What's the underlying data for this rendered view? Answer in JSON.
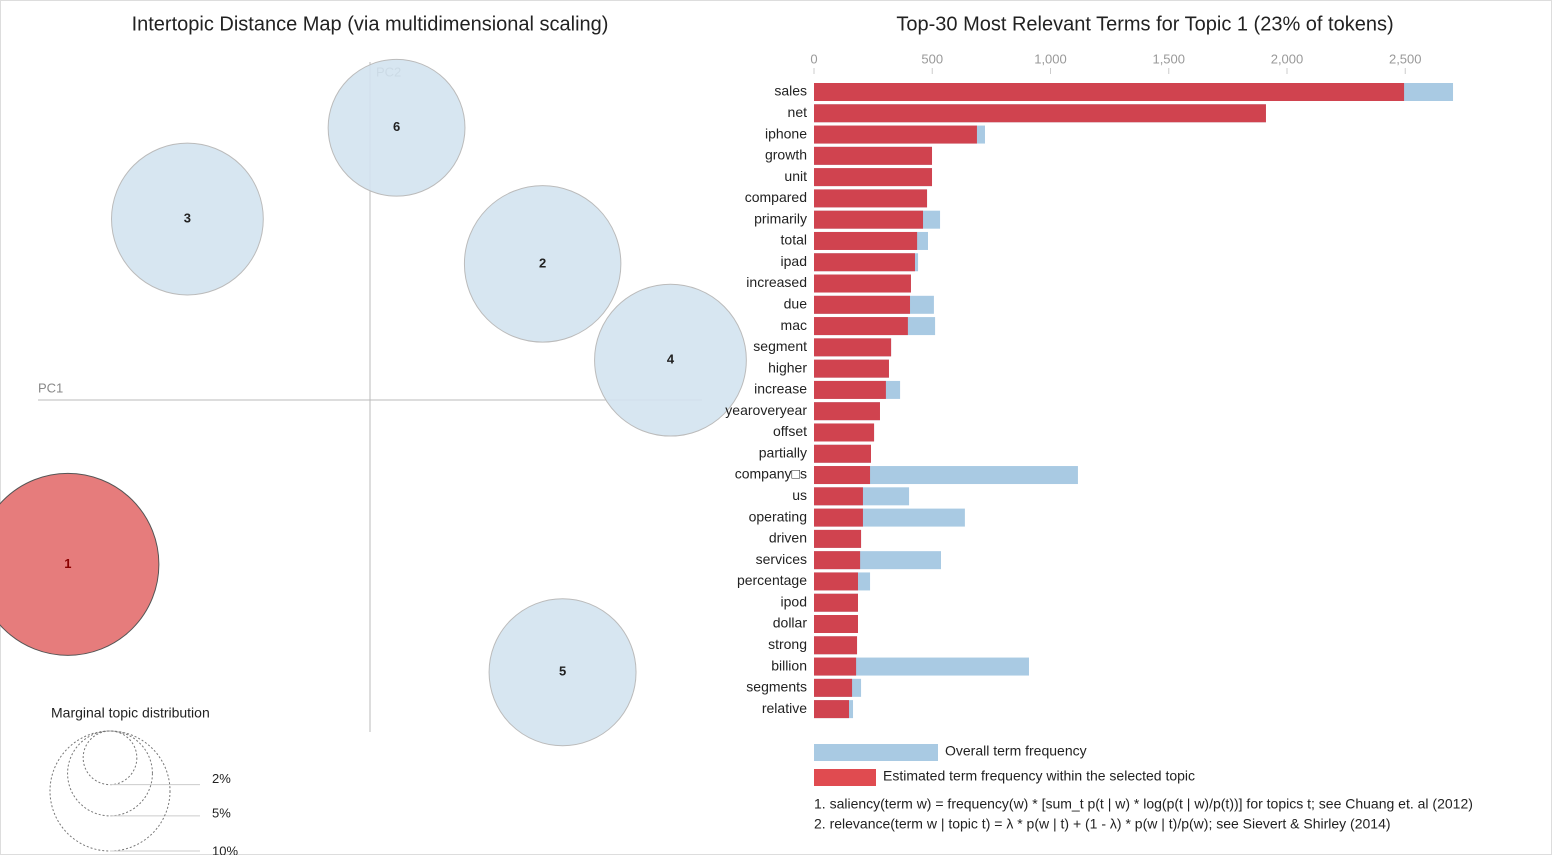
{
  "chart_data": [
    {
      "type": "bubble",
      "title": "Intertopic Distance Map (via multidimensional scaling)",
      "xlabel": "PC1",
      "ylabel": "PC2",
      "labels": [
        "1",
        "2",
        "3",
        "4",
        "5",
        "6"
      ],
      "x": [
        -0.182,
        0.104,
        -0.11,
        0.181,
        0.116,
        0.016
      ],
      "values": [
        -0.099,
        0.082,
        0.109,
        0.024,
        -0.164,
        0.164
      ],
      "sizes": [
        23,
        17,
        16,
        16,
        15,
        13
      ],
      "colors": [
        "#e67c7c",
        "#d3e3ef",
        "#d3e3ef",
        "#d3e3ef",
        "#d3e3ef",
        "#d3e3ef"
      ],
      "xlim": [
        -0.2,
        0.2
      ],
      "ylim": [
        -0.2,
        0.2
      ],
      "size_legend": {
        "title": "Marginal topic distribution",
        "ticks": [
          {
            "value": 2,
            "label": "2%"
          },
          {
            "value": 5,
            "label": "5%"
          },
          {
            "value": 10,
            "label": "10%"
          }
        ]
      }
    },
    {
      "type": "hbar",
      "title": "Top-30 Most Relevant Terms for Topic 1 (23% of tokens)",
      "categories": [
        "sales",
        "net",
        "iphone",
        "growth",
        "unit",
        "compared",
        "primarily",
        "total",
        "ipad",
        "increased",
        "due",
        "mac",
        "segment",
        "higher",
        "increase",
        "yearoveryear",
        "offset",
        "partially",
        "company□s",
        "us",
        "operating",
        "driven",
        "services",
        "percentage",
        "ipod",
        "dollar",
        "strong",
        "billion",
        "segments",
        "relative"
      ],
      "series": [
        {
          "name": "Overall term frequency",
          "color": "#a9cae3",
          "values": [
            2702,
            1911,
            723,
            499,
            499,
            478,
            533,
            482,
            440,
            410,
            507,
            512,
            326,
            317,
            364,
            279,
            254,
            241,
            1116,
            402,
            638,
            199,
            537,
            237,
            186,
            186,
            182,
            909,
            199,
            165
          ]
        },
        {
          "name": "Estimated term frequency within the selected topic",
          "color": "#d0434f",
          "values": [
            2495,
            1911,
            689,
            499,
            499,
            478,
            461,
            436,
            427,
            410,
            406,
            397,
            326,
            317,
            304,
            279,
            254,
            241,
            237,
            207,
            207,
            199,
            195,
            186,
            186,
            186,
            182,
            178,
            161,
            148
          ]
        }
      ],
      "xlim": [
        0,
        2720
      ],
      "xticks": [
        0,
        500,
        {
          "value": 1000,
          "label": "1,000"
        },
        {
          "value": 1500,
          "label": "1,500"
        },
        {
          "value": 2000,
          "label": "2,000"
        },
        {
          "value": 2500,
          "label": "2,500"
        }
      ],
      "notes": [
        "1. saliency(term w) = frequency(w) * [sum_t p(t | w) * log(p(t | w)/p(t))] for topics t; see Chuang et. al (2012)",
        "2. relevance(term w | topic t) = λ * p(w | t) + (1 - λ) * p(w | t)/p(w); see Sievert & Shirley (2014)"
      ]
    }
  ]
}
